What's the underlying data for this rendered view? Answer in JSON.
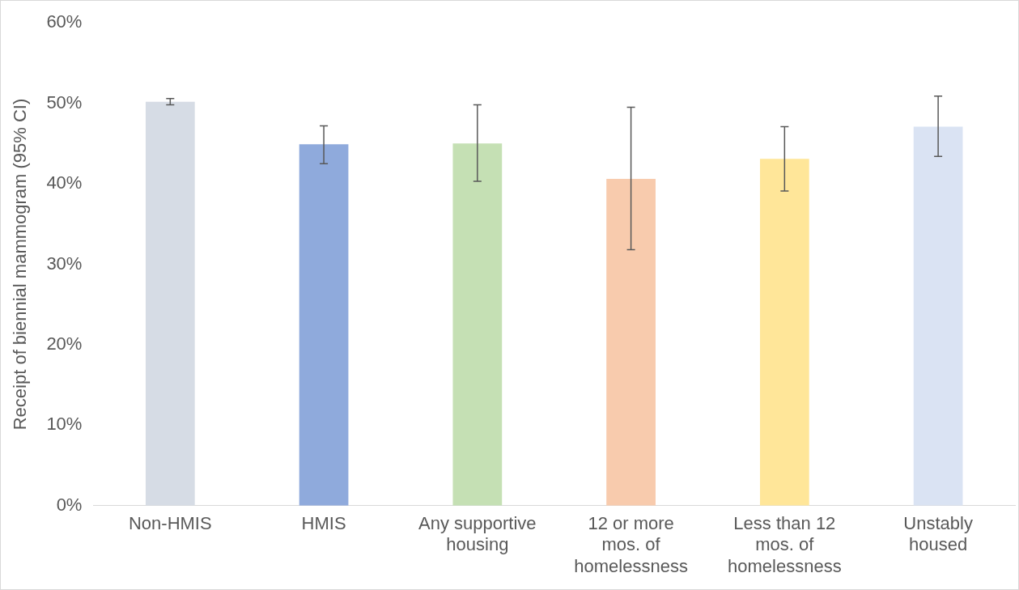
{
  "chart_data": {
    "type": "bar",
    "ylabel": "Receipt of biennial mammogram (95% CI)",
    "categories": [
      "Non-HMIS",
      "HMIS",
      "Any supportive housing",
      "12 or more mos. of homelessness",
      "Less than 12 mos. of homelessness",
      "Unstably housed"
    ],
    "values": [
      50.2,
      44.9,
      45.0,
      40.6,
      43.1,
      47.1
    ],
    "colors": [
      "#d6dce5",
      "#8faadc",
      "#c5e0b4",
      "#f8cbad",
      "#ffe699",
      "#dae3f3"
    ],
    "errors": [
      [
        49.8,
        50.6
      ],
      [
        42.5,
        47.2
      ],
      [
        40.3,
        49.8
      ],
      [
        31.8,
        49.5
      ],
      [
        39.1,
        47.1
      ],
      [
        43.4,
        50.9
      ]
    ],
    "ylim": [
      0,
      60
    ],
    "yticks": [
      {
        "value": 0,
        "label": "0%"
      },
      {
        "value": 10,
        "label": "10%"
      },
      {
        "value": 20,
        "label": "20%"
      },
      {
        "value": 30,
        "label": "30%"
      },
      {
        "value": 40,
        "label": "40%"
      },
      {
        "value": 50,
        "label": "50%"
      },
      {
        "value": 60,
        "label": "60%"
      }
    ],
    "grid": false,
    "legend": false
  }
}
